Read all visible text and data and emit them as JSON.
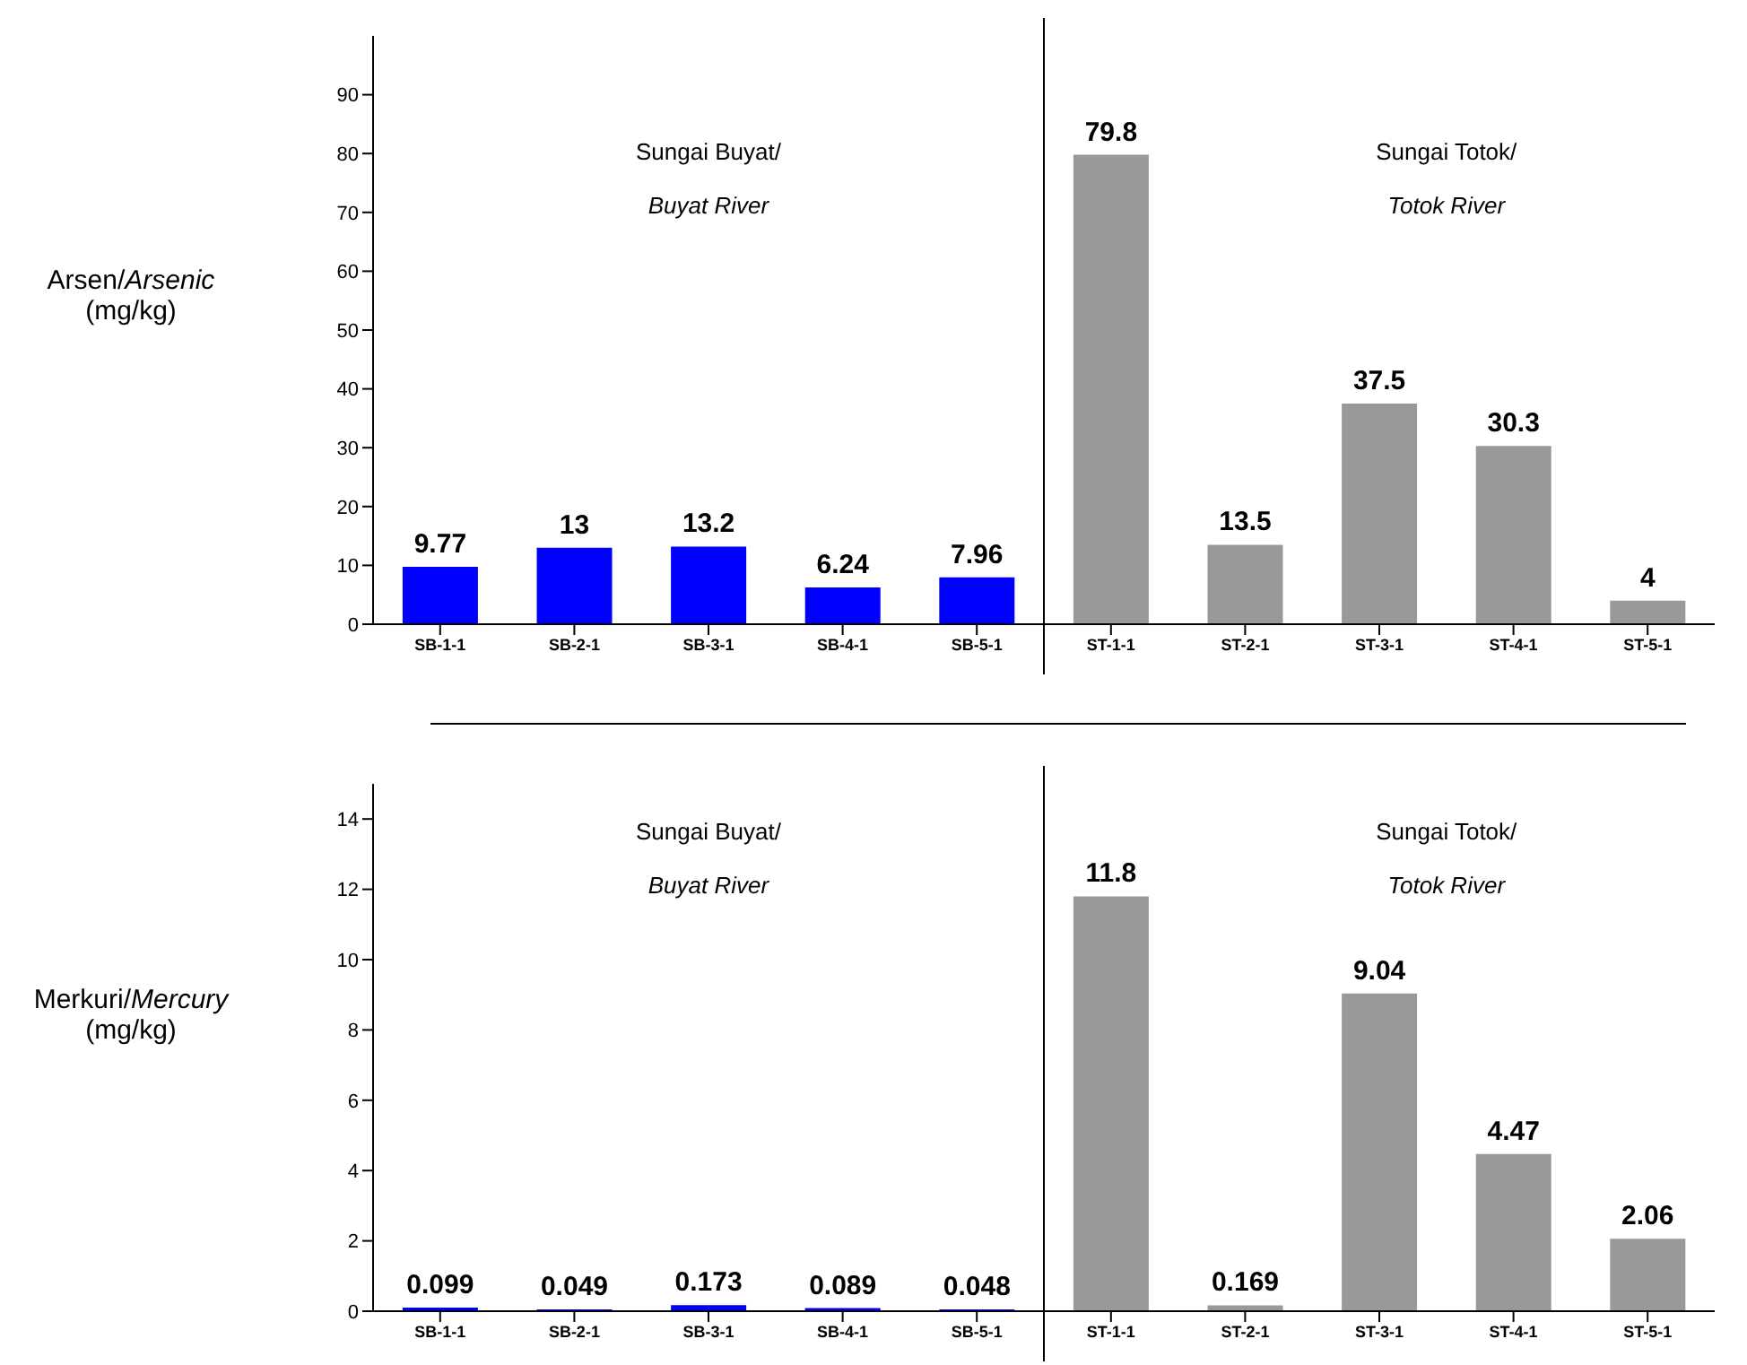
{
  "chart_data": [
    {
      "type": "bar",
      "ylabel": "Arsen/Arsenic (mg/kg)",
      "categories": [
        "SB-1-1",
        "SB-2-1",
        "SB-3-1",
        "SB-4-1",
        "SB-5-1",
        "ST-1-1",
        "ST-2-1",
        "ST-3-1",
        "ST-4-1",
        "ST-5-1"
      ],
      "values": [
        9.77,
        13,
        13.2,
        6.24,
        7.96,
        79.8,
        13.5,
        37.5,
        30.3,
        4
      ],
      "colors": [
        "#0000ff",
        "#0000ff",
        "#0000ff",
        "#0000ff",
        "#0000ff",
        "#999999",
        "#999999",
        "#999999",
        "#999999",
        "#999999"
      ],
      "ylim": [
        0,
        100
      ],
      "yticks": [
        0,
        10,
        20,
        30,
        40,
        50,
        60,
        70,
        80,
        90
      ],
      "data_labels": true,
      "grid": false,
      "legend": false,
      "annotations": [
        "Sungai Buyat/ Buyat River",
        "Sungai Totok/ Totok River"
      ]
    },
    {
      "type": "bar",
      "ylabel": "Merkuri/Mercury (mg/kg)",
      "categories": [
        "SB-1-1",
        "SB-2-1",
        "SB-3-1",
        "SB-4-1",
        "SB-5-1",
        "ST-1-1",
        "ST-2-1",
        "ST-3-1",
        "ST-4-1",
        "ST-5-1"
      ],
      "values": [
        0.099,
        0.049,
        0.173,
        0.089,
        0.048,
        11.8,
        0.169,
        9.04,
        4.47,
        2.06
      ],
      "colors": [
        "#0000ff",
        "#0000ff",
        "#0000ff",
        "#0000ff",
        "#0000ff",
        "#999999",
        "#999999",
        "#999999",
        "#999999",
        "#999999"
      ],
      "ylim": [
        0,
        15
      ],
      "yticks": [
        0,
        2,
        4,
        6,
        8,
        10,
        12,
        14
      ],
      "data_labels": true,
      "grid": false,
      "legend": false,
      "annotations": [
        "Sungai Buyat/ Buyat River",
        "Sungai Totok/ Totok River"
      ]
    }
  ]
}
